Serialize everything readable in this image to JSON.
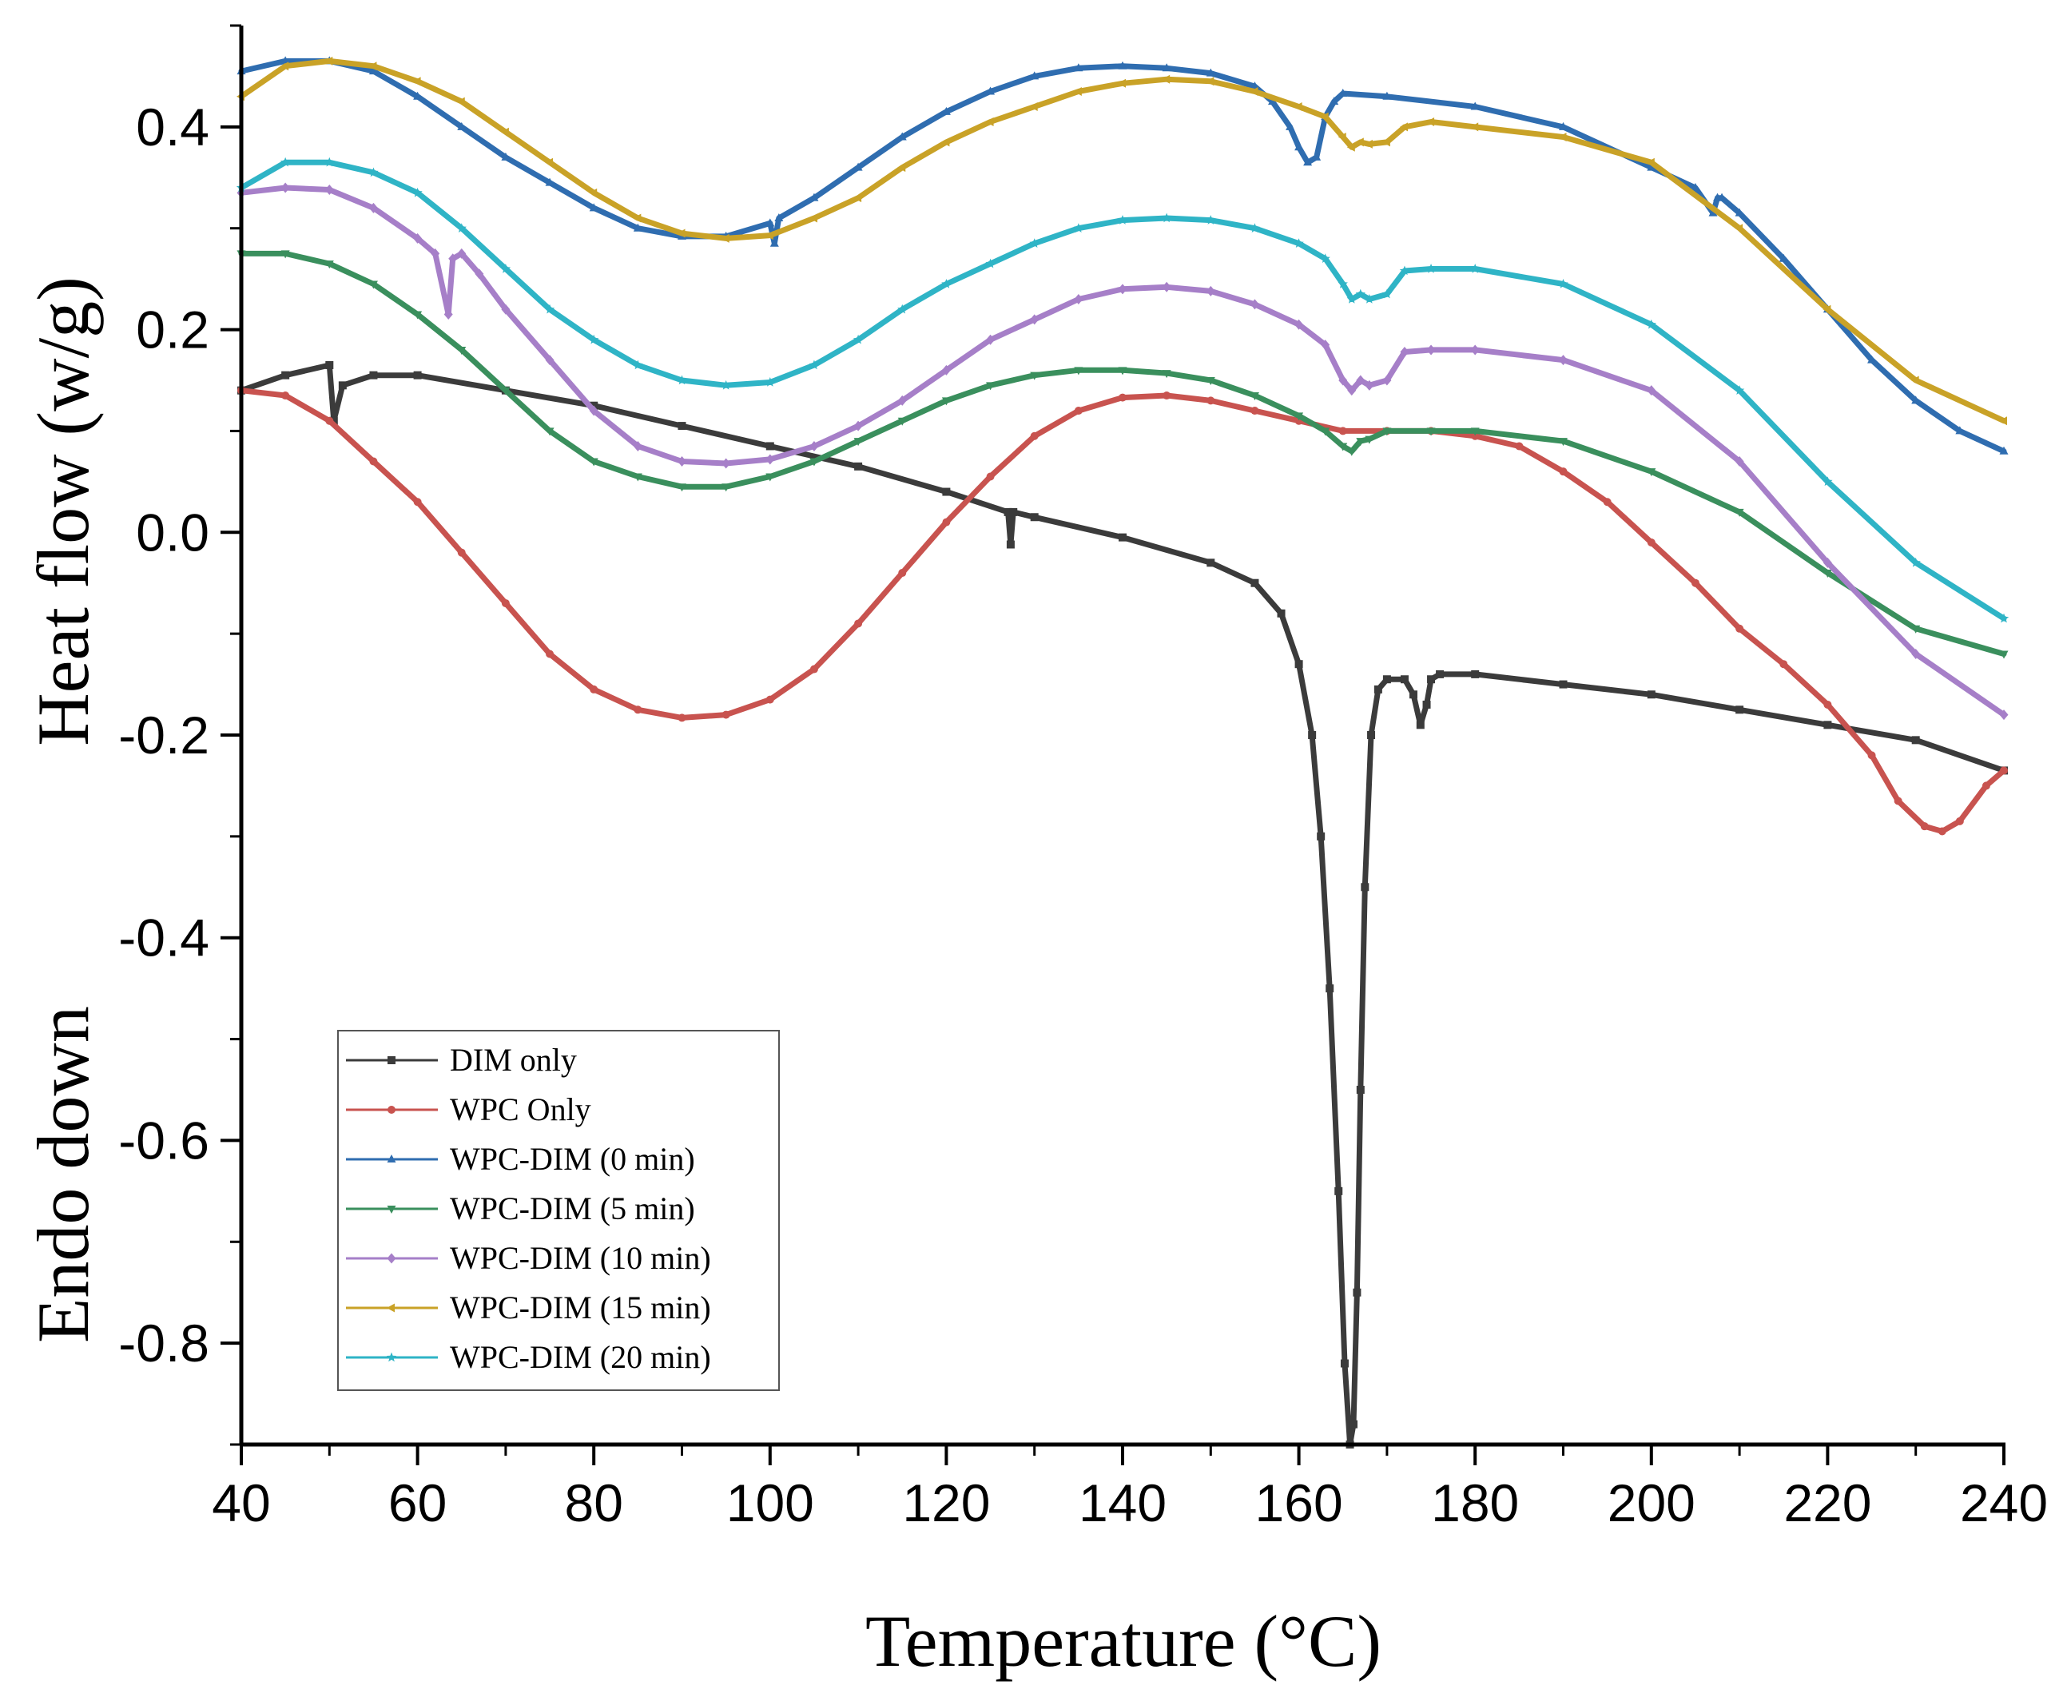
{
  "chart_data": {
    "type": "line",
    "title": "",
    "xlabel": "Temperature (°C)",
    "ylabel": "Heat flow (w/g)",
    "annotation": "Endo down",
    "xlim": [
      40,
      240
    ],
    "ylim": [
      -0.9,
      0.5
    ],
    "xticks": [
      "40",
      "60",
      "80",
      "100",
      "120",
      "140",
      "160",
      "180",
      "200",
      "220",
      "240"
    ],
    "xtick_values": [
      40,
      60,
      80,
      100,
      120,
      140,
      160,
      180,
      200,
      220,
      240
    ],
    "yticks": [
      "-0.8",
      "-0.6",
      "-0.4",
      "-0.2",
      "0.0",
      "0.2",
      "0.4"
    ],
    "ytick_values": [
      -0.8,
      -0.6,
      -0.4,
      -0.2,
      0.0,
      0.2,
      0.4
    ],
    "grid": false,
    "legend_position": "bottom-left",
    "series": [
      {
        "name": "DIM only",
        "color": "#3b3b3b",
        "marker": "square",
        "x": [
          40,
          45,
          50,
          50.5,
          51.5,
          55,
          60,
          70,
          80,
          90,
          100,
          110,
          120,
          127,
          127.3,
          127.6,
          130,
          140,
          150,
          155,
          158,
          160,
          161.5,
          162.5,
          163.5,
          164.5,
          165.2,
          165.8,
          166.2,
          166.6,
          167,
          167.5,
          168.2,
          169,
          170,
          172,
          173,
          173.8,
          174.5,
          175,
          176,
          180,
          190,
          200,
          210,
          220,
          230,
          240
        ],
        "y": [
          0.14,
          0.155,
          0.165,
          0.11,
          0.145,
          0.155,
          0.155,
          0.14,
          0.125,
          0.105,
          0.085,
          0.065,
          0.04,
          0.02,
          -0.012,
          0.02,
          0.015,
          -0.005,
          -0.03,
          -0.05,
          -0.08,
          -0.13,
          -0.2,
          -0.3,
          -0.45,
          -0.65,
          -0.82,
          -0.9,
          -0.88,
          -0.75,
          -0.55,
          -0.35,
          -0.2,
          -0.155,
          -0.145,
          -0.145,
          -0.16,
          -0.19,
          -0.17,
          -0.145,
          -0.14,
          -0.14,
          -0.15,
          -0.16,
          -0.175,
          -0.19,
          -0.205,
          -0.235
        ]
      },
      {
        "name": "WPC Only",
        "color": "#c8534f",
        "marker": "circle",
        "x": [
          40,
          45,
          50,
          55,
          60,
          65,
          70,
          75,
          80,
          85,
          90,
          95,
          100,
          105,
          110,
          115,
          120,
          125,
          130,
          135,
          140,
          145,
          150,
          155,
          160,
          165,
          170,
          175,
          180,
          185,
          190,
          195,
          200,
          205,
          210,
          215,
          220,
          225,
          228,
          231,
          233,
          235,
          238,
          240
        ],
        "y": [
          0.14,
          0.135,
          0.11,
          0.07,
          0.03,
          -0.02,
          -0.07,
          -0.12,
          -0.155,
          -0.175,
          -0.183,
          -0.18,
          -0.165,
          -0.135,
          -0.09,
          -0.04,
          0.01,
          0.055,
          0.095,
          0.12,
          0.133,
          0.135,
          0.13,
          0.12,
          0.11,
          0.1,
          0.1,
          0.1,
          0.095,
          0.085,
          0.06,
          0.03,
          -0.01,
          -0.05,
          -0.095,
          -0.13,
          -0.17,
          -0.22,
          -0.265,
          -0.29,
          -0.295,
          -0.285,
          -0.25,
          -0.235
        ]
      },
      {
        "name": "WPC-DIM (0 min)",
        "color": "#2f6db0",
        "marker": "triangle-up",
        "x": [
          40,
          45,
          50,
          55,
          60,
          65,
          70,
          75,
          80,
          85,
          90,
          95,
          100,
          100.5,
          101,
          105,
          110,
          115,
          120,
          125,
          130,
          135,
          140,
          145,
          150,
          155,
          157,
          159,
          160,
          161,
          162,
          163,
          164,
          165,
          170,
          180,
          190,
          200,
          205,
          207,
          207.5,
          208,
          210,
          215,
          220,
          225,
          230,
          235,
          240
        ],
        "y": [
          0.455,
          0.465,
          0.465,
          0.455,
          0.43,
          0.4,
          0.37,
          0.345,
          0.32,
          0.3,
          0.292,
          0.292,
          0.305,
          0.285,
          0.31,
          0.33,
          0.36,
          0.39,
          0.415,
          0.435,
          0.45,
          0.458,
          0.46,
          0.458,
          0.453,
          0.44,
          0.425,
          0.4,
          0.38,
          0.365,
          0.37,
          0.41,
          0.425,
          0.433,
          0.43,
          0.42,
          0.4,
          0.36,
          0.34,
          0.315,
          0.33,
          0.33,
          0.315,
          0.27,
          0.22,
          0.17,
          0.13,
          0.1,
          0.08
        ]
      },
      {
        "name": "WPC-DIM (5 min)",
        "color": "#3a8f5d",
        "marker": "triangle-down",
        "x": [
          40,
          45,
          50,
          55,
          60,
          65,
          70,
          75,
          80,
          85,
          90,
          95,
          100,
          105,
          110,
          115,
          120,
          125,
          130,
          135,
          140,
          145,
          150,
          155,
          160,
          163,
          165,
          166,
          167,
          168,
          170,
          175,
          180,
          190,
          200,
          210,
          220,
          230,
          240
        ],
        "y": [
          0.275,
          0.275,
          0.265,
          0.245,
          0.215,
          0.18,
          0.14,
          0.1,
          0.07,
          0.055,
          0.045,
          0.045,
          0.055,
          0.07,
          0.09,
          0.11,
          0.13,
          0.145,
          0.155,
          0.16,
          0.16,
          0.157,
          0.15,
          0.135,
          0.115,
          0.1,
          0.085,
          0.08,
          0.09,
          0.092,
          0.1,
          0.1,
          0.1,
          0.09,
          0.06,
          0.02,
          -0.04,
          -0.095,
          -0.12
        ]
      },
      {
        "name": "WPC-DIM (10 min)",
        "color": "#a67fc8",
        "marker": "diamond",
        "x": [
          40,
          45,
          50,
          55,
          60,
          62,
          63.5,
          64,
          65,
          67,
          70,
          75,
          80,
          85,
          90,
          95,
          100,
          105,
          110,
          115,
          120,
          125,
          130,
          135,
          140,
          145,
          150,
          155,
          160,
          163,
          165,
          166,
          167,
          168,
          170,
          172,
          175,
          180,
          190,
          200,
          210,
          220,
          230,
          240
        ],
        "y": [
          0.335,
          0.34,
          0.338,
          0.32,
          0.29,
          0.275,
          0.215,
          0.27,
          0.275,
          0.255,
          0.22,
          0.17,
          0.12,
          0.085,
          0.07,
          0.068,
          0.072,
          0.085,
          0.105,
          0.13,
          0.16,
          0.19,
          0.21,
          0.23,
          0.24,
          0.242,
          0.238,
          0.225,
          0.205,
          0.185,
          0.15,
          0.14,
          0.15,
          0.145,
          0.15,
          0.178,
          0.18,
          0.18,
          0.17,
          0.14,
          0.07,
          -0.03,
          -0.12,
          -0.18
        ]
      },
      {
        "name": "WPC-DIM (15 min)",
        "color": "#c9a227",
        "marker": "triangle-left",
        "x": [
          40,
          45,
          50,
          55,
          60,
          65,
          70,
          75,
          80,
          85,
          90,
          95,
          100,
          105,
          110,
          115,
          120,
          125,
          130,
          135,
          140,
          145,
          150,
          155,
          160,
          163,
          165,
          166,
          167,
          168,
          170,
          172,
          175,
          180,
          190,
          200,
          210,
          220,
          230,
          240
        ],
        "y": [
          0.43,
          0.46,
          0.465,
          0.46,
          0.445,
          0.425,
          0.395,
          0.365,
          0.335,
          0.31,
          0.295,
          0.29,
          0.293,
          0.31,
          0.33,
          0.36,
          0.385,
          0.405,
          0.42,
          0.435,
          0.443,
          0.447,
          0.445,
          0.435,
          0.42,
          0.41,
          0.39,
          0.38,
          0.385,
          0.383,
          0.385,
          0.4,
          0.405,
          0.4,
          0.39,
          0.365,
          0.3,
          0.22,
          0.15,
          0.11
        ]
      },
      {
        "name": "WPC-DIM (20 min)",
        "color": "#2fb4c6",
        "marker": "star",
        "x": [
          40,
          45,
          50,
          55,
          60,
          65,
          70,
          75,
          80,
          85,
          90,
          95,
          100,
          105,
          110,
          115,
          120,
          125,
          130,
          135,
          140,
          145,
          150,
          155,
          160,
          163,
          165,
          166,
          167,
          168,
          170,
          172,
          175,
          180,
          190,
          200,
          210,
          220,
          230,
          240
        ],
        "y": [
          0.34,
          0.365,
          0.365,
          0.355,
          0.335,
          0.3,
          0.26,
          0.22,
          0.19,
          0.165,
          0.15,
          0.145,
          0.148,
          0.165,
          0.19,
          0.22,
          0.245,
          0.265,
          0.285,
          0.3,
          0.308,
          0.31,
          0.308,
          0.3,
          0.285,
          0.27,
          0.245,
          0.23,
          0.235,
          0.23,
          0.235,
          0.258,
          0.26,
          0.26,
          0.245,
          0.205,
          0.14,
          0.05,
          -0.03,
          -0.085
        ]
      }
    ]
  }
}
